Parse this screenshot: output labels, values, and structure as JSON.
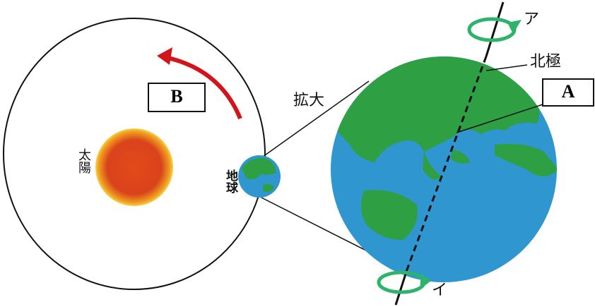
{
  "labels": {
    "sun": "太陽",
    "earth": "地球",
    "orbit_box": "B",
    "zoom": "拡大",
    "axis_box": "A",
    "north_pole": "北極",
    "top_rotation": "ア",
    "bottom_rotation": "イ"
  }
}
